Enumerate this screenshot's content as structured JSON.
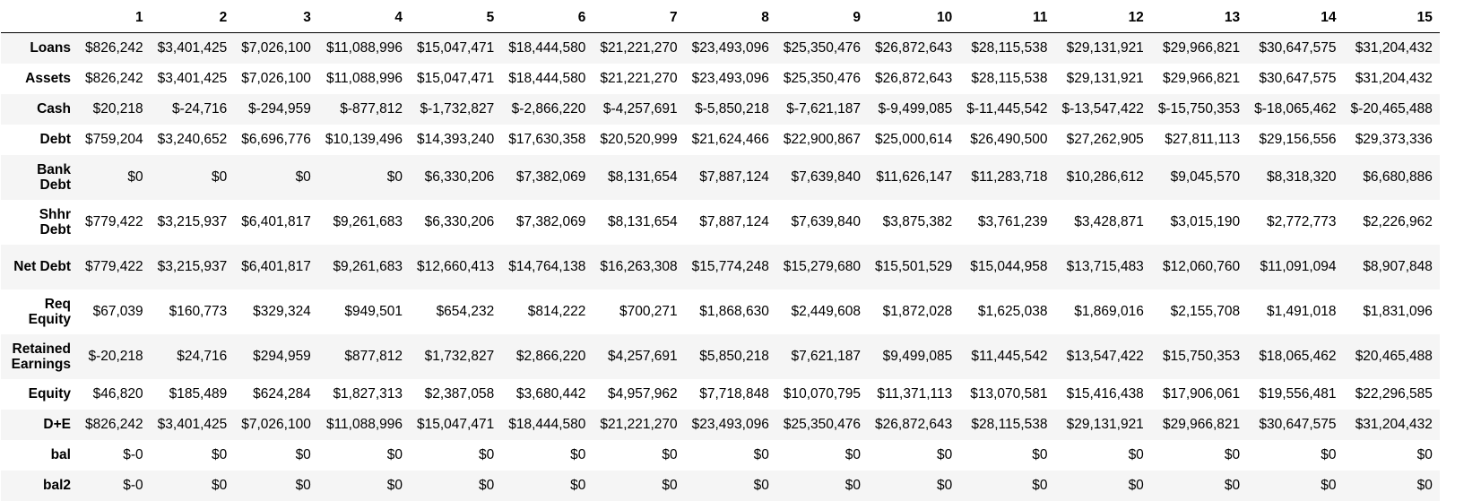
{
  "columns": [
    "1",
    "2",
    "3",
    "4",
    "5",
    "6",
    "7",
    "8",
    "9",
    "10",
    "11",
    "12",
    "13",
    "14",
    "15"
  ],
  "rows": [
    {
      "label": "Loans",
      "values": [
        "$826,242",
        "$3,401,425",
        "$7,026,100",
        "$11,088,996",
        "$15,047,471",
        "$18,444,580",
        "$21,221,270",
        "$23,493,096",
        "$25,350,476",
        "$26,872,643",
        "$28,115,538",
        "$29,131,921",
        "$29,966,821",
        "$30,647,575",
        "$31,204,432"
      ]
    },
    {
      "label": "Assets",
      "values": [
        "$826,242",
        "$3,401,425",
        "$7,026,100",
        "$11,088,996",
        "$15,047,471",
        "$18,444,580",
        "$21,221,270",
        "$23,493,096",
        "$25,350,476",
        "$26,872,643",
        "$28,115,538",
        "$29,131,921",
        "$29,966,821",
        "$30,647,575",
        "$31,204,432"
      ]
    },
    {
      "label": "Cash",
      "values": [
        "$20,218",
        "$-24,716",
        "$-294,959",
        "$-877,812",
        "$-1,732,827",
        "$-2,866,220",
        "$-4,257,691",
        "$-5,850,218",
        "$-7,621,187",
        "$-9,499,085",
        "$-11,445,542",
        "$-13,547,422",
        "$-15,750,353",
        "$-18,065,462",
        "$-20,465,488"
      ]
    },
    {
      "label": "Debt",
      "values": [
        "$759,204",
        "$3,240,652",
        "$6,696,776",
        "$10,139,496",
        "$14,393,240",
        "$17,630,358",
        "$20,520,999",
        "$21,624,466",
        "$22,900,867",
        "$25,000,614",
        "$26,490,500",
        "$27,262,905",
        "$27,811,113",
        "$29,156,556",
        "$29,373,336"
      ]
    },
    {
      "label": "Bank Debt",
      "values": [
        "$0",
        "$0",
        "$0",
        "$0",
        "$6,330,206",
        "$7,382,069",
        "$8,131,654",
        "$7,887,124",
        "$7,639,840",
        "$11,626,147",
        "$11,283,718",
        "$10,286,612",
        "$9,045,570",
        "$8,318,320",
        "$6,680,886"
      ]
    },
    {
      "label": "Shhr Debt",
      "values": [
        "$779,422",
        "$3,215,937",
        "$6,401,817",
        "$9,261,683",
        "$6,330,206",
        "$7,382,069",
        "$8,131,654",
        "$7,887,124",
        "$7,639,840",
        "$3,875,382",
        "$3,761,239",
        "$3,428,871",
        "$3,015,190",
        "$2,772,773",
        "$2,226,962"
      ]
    },
    {
      "label": "Net Debt",
      "values": [
        "$779,422",
        "$3,215,937",
        "$6,401,817",
        "$9,261,683",
        "$12,660,413",
        "$14,764,138",
        "$16,263,308",
        "$15,774,248",
        "$15,279,680",
        "$15,501,529",
        "$15,044,958",
        "$13,715,483",
        "$12,060,760",
        "$11,091,094",
        "$8,907,848"
      ]
    },
    {
      "label": "Req Equity",
      "values": [
        "$67,039",
        "$160,773",
        "$329,324",
        "$949,501",
        "$654,232",
        "$814,222",
        "$700,271",
        "$1,868,630",
        "$2,449,608",
        "$1,872,028",
        "$1,625,038",
        "$1,869,016",
        "$2,155,708",
        "$1,491,018",
        "$1,831,096"
      ]
    },
    {
      "label": "Retained Earnings",
      "values": [
        "$-20,218",
        "$24,716",
        "$294,959",
        "$877,812",
        "$1,732,827",
        "$2,866,220",
        "$4,257,691",
        "$5,850,218",
        "$7,621,187",
        "$9,499,085",
        "$11,445,542",
        "$13,547,422",
        "$15,750,353",
        "$18,065,462",
        "$20,465,488"
      ]
    },
    {
      "label": "Equity",
      "values": [
        "$46,820",
        "$185,489",
        "$624,284",
        "$1,827,313",
        "$2,387,058",
        "$3,680,442",
        "$4,957,962",
        "$7,718,848",
        "$10,070,795",
        "$11,371,113",
        "$13,070,581",
        "$15,416,438",
        "$17,906,061",
        "$19,556,481",
        "$22,296,585"
      ]
    },
    {
      "label": "D+E",
      "values": [
        "$826,242",
        "$3,401,425",
        "$7,026,100",
        "$11,088,996",
        "$15,047,471",
        "$18,444,580",
        "$21,221,270",
        "$23,493,096",
        "$25,350,476",
        "$26,872,643",
        "$28,115,538",
        "$29,131,921",
        "$29,966,821",
        "$30,647,575",
        "$31,204,432"
      ]
    },
    {
      "label": "bal",
      "values": [
        "$-0",
        "$0",
        "$0",
        "$0",
        "$0",
        "$0",
        "$0",
        "$0",
        "$0",
        "$0",
        "$0",
        "$0",
        "$0",
        "$0",
        "$0"
      ]
    },
    {
      "label": "bal2",
      "values": [
        "$-0",
        "$0",
        "$0",
        "$0",
        "$0",
        "$0",
        "$0",
        "$0",
        "$0",
        "$0",
        "$0",
        "$0",
        "$0",
        "$0",
        "$0"
      ]
    }
  ]
}
